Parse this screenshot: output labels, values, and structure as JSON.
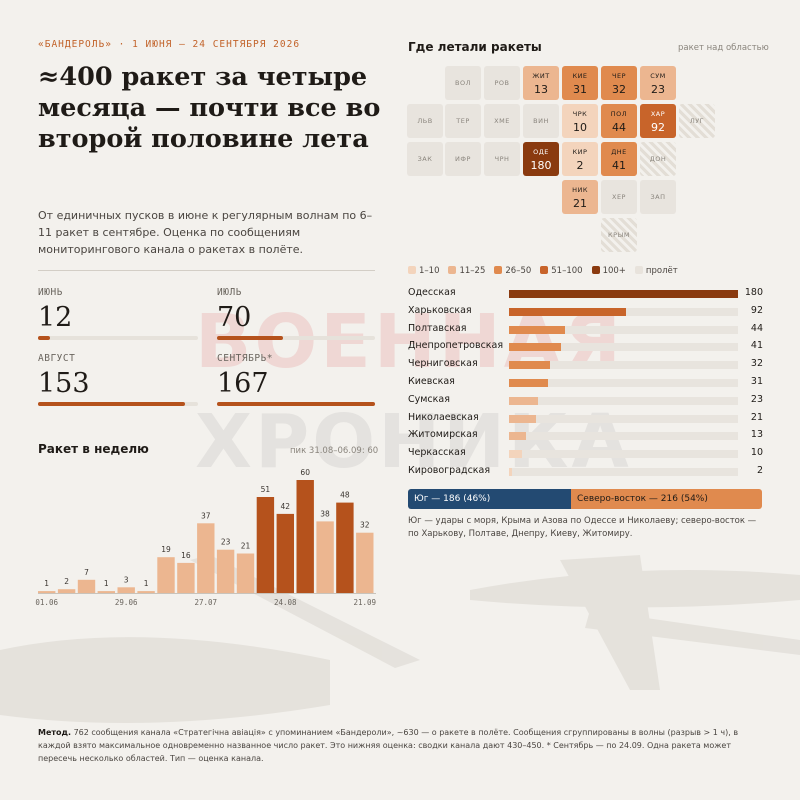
{
  "eyebrow": "«БАНДЕРОЛЬ» · 1 ИЮНЯ — 24 СЕНТЯБРЯ 2026",
  "headline": "≈400 ракет за четыре месяца — почти все во второй половине лета",
  "lede": "От единичных пусков в июне к регулярным волнам по 6–11 ракет в сентябре. Оценка по сообщениям мониторингового канала о ракетах в полёте.",
  "watermark": [
    "ВОЕННАЯ",
    "ХРОНИКА"
  ],
  "months": [
    {
      "label": "ИЮНЬ",
      "value": "12",
      "fill": 0.072
    },
    {
      "label": "ИЮЛЬ",
      "value": "70",
      "fill": 0.42
    },
    {
      "label": "АВГУСТ",
      "value": "153",
      "fill": 0.916
    },
    {
      "label": "СЕНТЯБРЬ*",
      "value": "167",
      "fill": 1.0
    }
  ],
  "weekly": {
    "title": "Ракет в неделю",
    "note": "пик 31.08–06.09: 60"
  },
  "map": {
    "title": "Где летали ракеты",
    "note": "ракет над областью",
    "legend": [
      {
        "label": "1–10",
        "color": "#f3d4bc"
      },
      {
        "label": "11–25",
        "color": "#ecb690"
      },
      {
        "label": "26–50",
        "color": "#e08a4e"
      },
      {
        "label": "51–100",
        "color": "#c8642a"
      },
      {
        "label": "100+",
        "color": "#8a3a0f"
      },
      {
        "label": "пролёт",
        "color": "#e8e3dc"
      }
    ],
    "cells": [
      {
        "code": "ВОЛ",
        "value": "",
        "kind": "none"
      },
      {
        "code": "РОВ",
        "value": "",
        "kind": "none"
      },
      {
        "code": "ЖИТ",
        "value": "13",
        "kind": "b2"
      },
      {
        "code": "КИЕ",
        "value": "31",
        "kind": "b3"
      },
      {
        "code": "ЧЕР",
        "value": "32",
        "kind": "b3"
      },
      {
        "code": "СУМ",
        "value": "23",
        "kind": "b2"
      },
      {
        "code": "ЛЬВ",
        "value": "",
        "kind": "none"
      },
      {
        "code": "ТЕР",
        "value": "",
        "kind": "none"
      },
      {
        "code": "ХМЕ",
        "value": "",
        "kind": "none"
      },
      {
        "code": "ВИН",
        "value": "",
        "kind": "none"
      },
      {
        "code": "ЧРК",
        "value": "10",
        "kind": "b1"
      },
      {
        "code": "ПОЛ",
        "value": "44",
        "kind": "b3"
      },
      {
        "code": "ХАР",
        "value": "92",
        "kind": "b4"
      },
      {
        "code": "ЛУГ",
        "value": "",
        "kind": "hatch"
      },
      {
        "code": "ЗАК",
        "value": "",
        "kind": "none"
      },
      {
        "code": "ИФР",
        "value": "",
        "kind": "none"
      },
      {
        "code": "ЧРН",
        "value": "",
        "kind": "none"
      },
      {
        "code": "ОДЕ",
        "value": "180",
        "kind": "b5"
      },
      {
        "code": "КИР",
        "value": "2",
        "kind": "b1"
      },
      {
        "code": "ДНЕ",
        "value": "41",
        "kind": "b3"
      },
      {
        "code": "ДОН",
        "value": "",
        "kind": "hatch"
      },
      {
        "code": "НИК",
        "value": "21",
        "kind": "b2"
      },
      {
        "code": "ХЕР",
        "value": "",
        "kind": "transit"
      },
      {
        "code": "ЗАП",
        "value": "",
        "kind": "transit"
      },
      {
        "code": "КРЫМ",
        "value": "",
        "kind": "hatch"
      }
    ]
  },
  "chart_data": {
    "type": "bar",
    "title": "Ракет в неделю",
    "categories": [
      "01.06",
      "08.06",
      "15.06",
      "22.06",
      "29.06",
      "06.07",
      "13.07",
      "20.07",
      "27.07",
      "03.08",
      "10.08",
      "17.08",
      "24.08",
      "31.08",
      "07.09",
      "14.09",
      "21.09"
    ],
    "values": [
      1,
      2,
      7,
      1,
      3,
      1,
      19,
      16,
      37,
      23,
      21,
      51,
      42,
      60,
      38,
      48,
      32
    ],
    "tick_labels": [
      "01.06",
      "29.06",
      "27.07",
      "24.08",
      "21.09"
    ],
    "ylim": [
      0,
      60
    ],
    "grid": false
  },
  "regions": {
    "type": "bar",
    "orientation": "horizontal",
    "items": [
      {
        "name": "Одесская",
        "value": 180
      },
      {
        "name": "Харьковская",
        "value": 92
      },
      {
        "name": "Полтавская",
        "value": 44
      },
      {
        "name": "Днепропетровская",
        "value": 41
      },
      {
        "name": "Черниговская",
        "value": 32
      },
      {
        "name": "Киевская",
        "value": 31
      },
      {
        "name": "Сумская",
        "value": 23
      },
      {
        "name": "Николаевская",
        "value": 21
      },
      {
        "name": "Житомирская",
        "value": 13
      },
      {
        "name": "Черкасская",
        "value": 10
      },
      {
        "name": "Кировоградская",
        "value": 2
      }
    ],
    "xlim": [
      0,
      180
    ]
  },
  "split": {
    "south_label": "Юг — 186 (46%)",
    "ne_label": "Северо-восток — 216 (54%)",
    "south_share": 0.46,
    "note": "Юг — удары с моря, Крыма и Азова по Одессе и Николаеву; северо-восток — по Харькову, Полтаве, Днепру, Киеву, Житомиру."
  },
  "method": {
    "label": "Метод.",
    "text": "762 сообщения канала «Стратегічна авіація» с упоминанием «Бандероли», ~630 — о ракете в полёте. Сообщения сгруппированы в волны (разрыв > 1 ч), в каждой взято максимальное одновременно названное число ракет. Это нижняя оценка: сводки канала дают 430–450. * Сентябрь — по 24.09. Одна ракета может пересечь несколько областей. Тип — оценка канала."
  },
  "colors": {
    "accent": "#c2632a",
    "bar_recent": "#b5521c",
    "bar_early": "#ecb690",
    "south": "#234a72",
    "northeast": "#e08a4e"
  }
}
